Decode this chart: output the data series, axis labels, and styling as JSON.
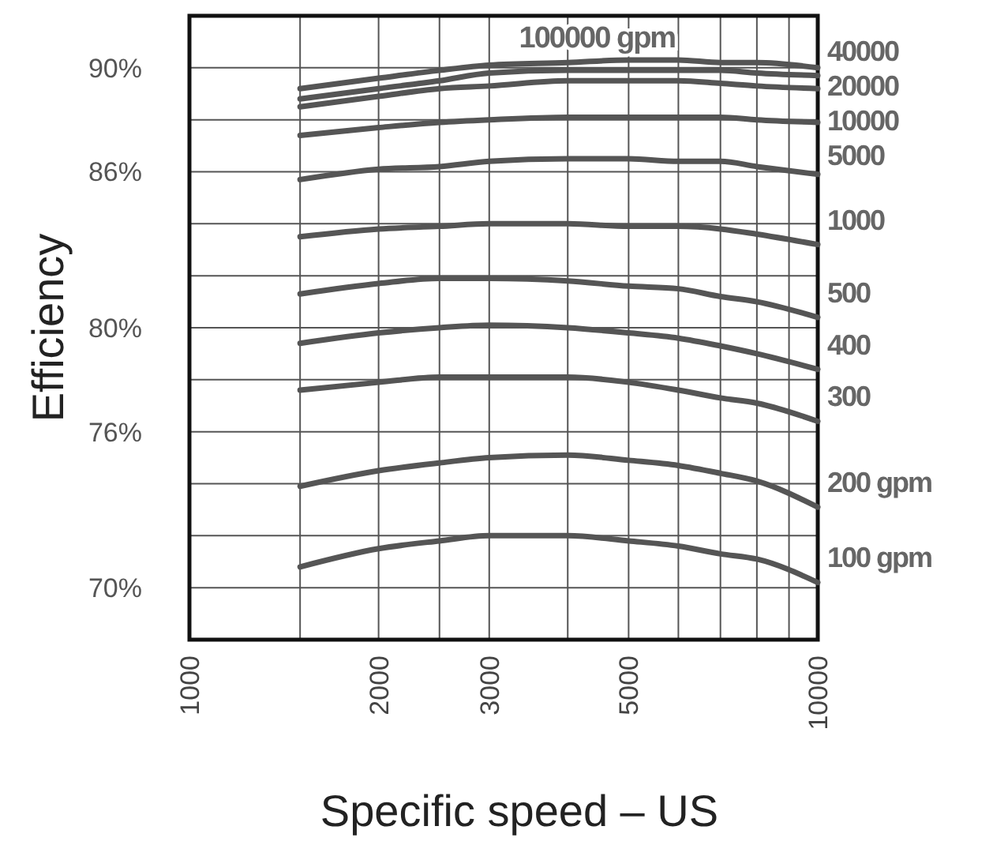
{
  "chart_data": {
    "type": "line",
    "xlabel": "Specific speed – US",
    "ylabel": "Efficiency",
    "log": "x",
    "grid": true,
    "marker": "none",
    "line_style": "solid",
    "xlim": [
      1000,
      10000
    ],
    "xticks": [
      1000,
      {
        "value": 1500,
        "label": null
      },
      2000,
      {
        "value": 2500,
        "label": null
      },
      3000,
      {
        "value": 4000,
        "label": null
      },
      5000,
      {
        "value": 6000,
        "label": null
      },
      {
        "value": 7000,
        "label": null
      },
      {
        "value": 8000,
        "label": null
      },
      {
        "value": 9000,
        "label": null
      },
      10000
    ],
    "ylim": [
      68,
      92
    ],
    "yticks": [
      {
        "value": 68,
        "label": null
      },
      {
        "value": 70,
        "label": "70%"
      },
      {
        "value": 72,
        "label": null
      },
      {
        "value": 74,
        "label": null
      },
      {
        "value": 76,
        "label": "76%"
      },
      {
        "value": 78,
        "label": null
      },
      {
        "value": 80,
        "label": "80%"
      },
      {
        "value": 82,
        "label": null
      },
      {
        "value": 84,
        "label": null
      },
      {
        "value": 86,
        "label": "86%"
      },
      {
        "value": 88,
        "label": null
      },
      {
        "value": 90,
        "label": "90%"
      },
      {
        "value": 92,
        "label": null
      }
    ],
    "x": [
      1500,
      2000,
      2500,
      3000,
      4000,
      5000,
      6000,
      7000,
      8000,
      10000
    ],
    "series": [
      {
        "name": "100000 gpm",
        "color": "#555555",
        "values": [
          89.2,
          89.6,
          89.9,
          90.1,
          90.2,
          90.3,
          90.3,
          90.2,
          90.2,
          90.0
        ]
      },
      {
        "name": "40000",
        "color": "#555555",
        "values": [
          88.8,
          89.2,
          89.5,
          89.8,
          89.9,
          89.9,
          89.9,
          89.9,
          89.8,
          89.7
        ]
      },
      {
        "name": "20000",
        "color": "#555555",
        "values": [
          88.5,
          88.9,
          89.2,
          89.3,
          89.5,
          89.5,
          89.5,
          89.4,
          89.3,
          89.2
        ]
      },
      {
        "name": "10000",
        "color": "#555555",
        "values": [
          87.4,
          87.7,
          87.9,
          88.0,
          88.1,
          88.1,
          88.1,
          88.1,
          88.0,
          87.9
        ]
      },
      {
        "name": "5000",
        "color": "#555555",
        "values": [
          85.7,
          86.1,
          86.2,
          86.4,
          86.5,
          86.5,
          86.4,
          86.4,
          86.2,
          85.9
        ]
      },
      {
        "name": "1000",
        "color": "#555555",
        "values": [
          83.5,
          83.8,
          83.9,
          84.0,
          84.0,
          83.9,
          83.9,
          83.8,
          83.6,
          83.2
        ]
      },
      {
        "name": "500",
        "color": "#555555",
        "values": [
          81.3,
          81.7,
          81.9,
          81.9,
          81.8,
          81.6,
          81.5,
          81.2,
          81.0,
          80.4
        ]
      },
      {
        "name": "400",
        "color": "#555555",
        "values": [
          79.4,
          79.8,
          80.0,
          80.1,
          80.0,
          79.8,
          79.6,
          79.3,
          79.0,
          78.4
        ]
      },
      {
        "name": "300",
        "color": "#555555",
        "values": [
          77.6,
          77.9,
          78.1,
          78.1,
          78.1,
          77.9,
          77.6,
          77.3,
          77.1,
          76.4
        ]
      },
      {
        "name": "200 gpm",
        "color": "#555555",
        "values": [
          73.9,
          74.5,
          74.8,
          75.0,
          75.1,
          74.9,
          74.7,
          74.4,
          74.1,
          73.1
        ]
      },
      {
        "name": "100 gpm",
        "color": "#555555",
        "values": [
          70.8,
          71.5,
          71.8,
          72.0,
          72.0,
          71.8,
          71.6,
          71.3,
          71.1,
          70.2
        ]
      }
    ]
  }
}
